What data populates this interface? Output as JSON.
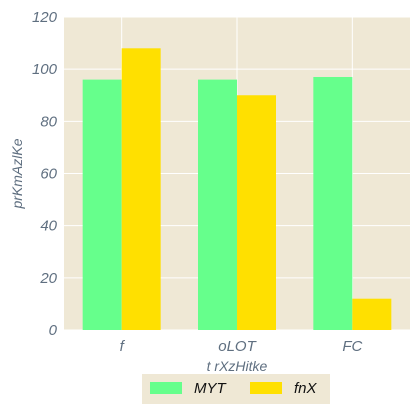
{
  "chart_data": {
    "type": "bar",
    "title": "",
    "xlabel": "t rXzHitke",
    "ylabel": "prKmAzlKe",
    "categories": [
      "f",
      "oLOT",
      "FC"
    ],
    "series": [
      {
        "name": "MYT",
        "values": [
          96,
          96,
          97
        ],
        "color": "#66ff8c"
      },
      {
        "name": "fnX",
        "values": [
          108,
          90,
          12
        ],
        "color": "#ffe000"
      }
    ],
    "ylim": [
      0,
      120
    ],
    "yticks": [
      0,
      20,
      40,
      60,
      80,
      100,
      120
    ],
    "grid": true,
    "legend_position": "bottom-center"
  },
  "colors": {
    "plot_background": "#efe8d5",
    "grid": "#ffffff",
    "legend_background": "#efe8d5"
  }
}
